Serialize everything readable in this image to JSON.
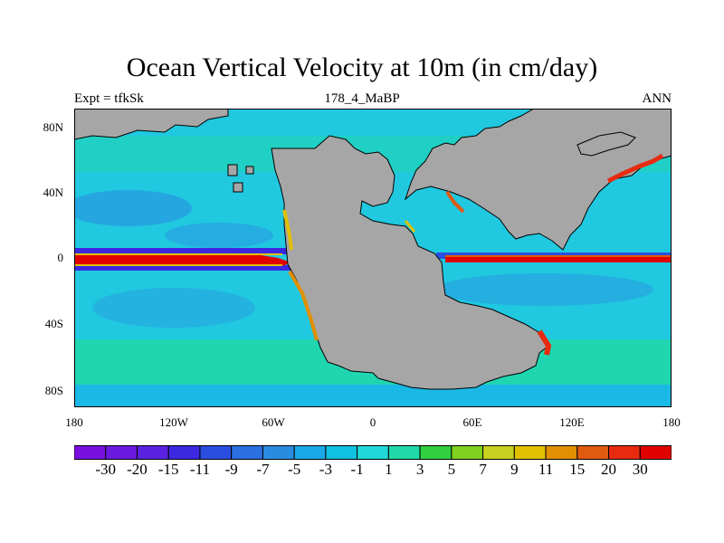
{
  "title": "Ocean Vertical Velocity at 10m (in cm/day)",
  "left_string": "Expt = tfkSk",
  "center_string": "178_4_MaBP",
  "right_string": "ANN",
  "x_ticks": [
    "180",
    "120W",
    "60W",
    "0",
    "60E",
    "120E",
    "180"
  ],
  "y_ticks": [
    "80N",
    "40N",
    "0",
    "40S",
    "80S"
  ],
  "land_color": "#a6a6a6",
  "colorbar": {
    "labels": [
      "-30",
      "-20",
      "-15",
      "-11",
      "-9",
      "-7",
      "-5",
      "-3",
      "-1",
      "1",
      "3",
      "5",
      "7",
      "9",
      "11",
      "15",
      "20",
      "30"
    ],
    "colors": [
      "#7a10e0",
      "#6a1ae0",
      "#5a22e0",
      "#3c28e0",
      "#2a4ee0",
      "#2a70e0",
      "#2a8ce0",
      "#1aa8e8",
      "#10c0e0",
      "#20d8d8",
      "#20d8a8",
      "#30d040",
      "#80d020",
      "#c8d020",
      "#e0c000",
      "#e09000",
      "#e05a10",
      "#e82a10",
      "#e00000"
    ]
  },
  "map": {
    "projection": "cylindrical-equidistant",
    "lon_range": [
      -180,
      180
    ],
    "lat_range": [
      -90,
      90
    ]
  }
}
